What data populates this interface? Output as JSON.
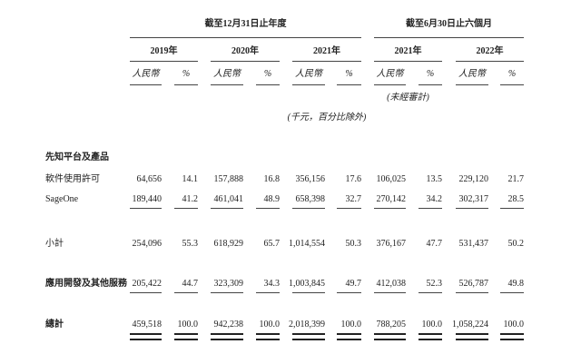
{
  "header": {
    "group_full_year": "截至12月31日止年度",
    "group_six_months": "截至6月30日止六個月",
    "years": [
      "2019年",
      "2020年",
      "2021年",
      "2021年",
      "2022年"
    ],
    "currency_label": "人民幣",
    "percent_label": "%",
    "unaudited": "(未經審計)",
    "units_note": "(千元，百分比除外)"
  },
  "section_title": "先知平台及產品",
  "rows": [
    {
      "label": "軟件使用許可",
      "values": [
        "64,656",
        "14.1",
        "157,888",
        "16.8",
        "356,156",
        "17.6",
        "106,025",
        "13.5",
        "229,120",
        "21.7"
      ]
    },
    {
      "label": "SageOne",
      "values": [
        "189,440",
        "41.2",
        "461,041",
        "48.9",
        "658,398",
        "32.7",
        "270,142",
        "34.2",
        "302,317",
        "28.5"
      ]
    },
    {
      "label": "小計",
      "values": [
        "254,096",
        "55.3",
        "618,929",
        "65.7",
        "1,014,554",
        "50.3",
        "376,167",
        "47.7",
        "531,437",
        "50.2"
      ]
    },
    {
      "label": "應用開發及其他服務",
      "values": [
        "205,422",
        "44.7",
        "323,309",
        "34.3",
        "1,003,845",
        "49.7",
        "412,038",
        "52.3",
        "526,787",
        "49.8"
      ]
    },
    {
      "label": "總計",
      "values": [
        "459,518",
        "100.0",
        "942,238",
        "100.0",
        "2,018,399",
        "100.0",
        "788,205",
        "100.0",
        "1,058,224",
        "100.0"
      ]
    }
  ]
}
